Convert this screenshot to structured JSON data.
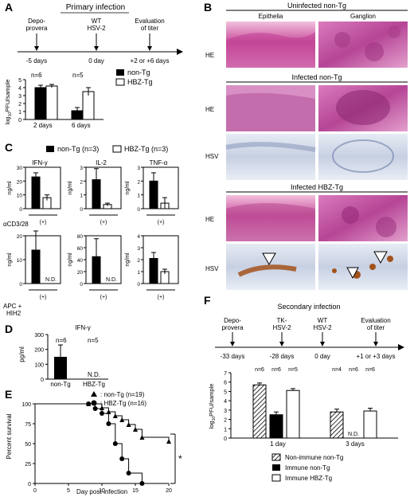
{
  "panel_labels": {
    "A": "A",
    "B": "B",
    "C": "C",
    "D": "D",
    "E": "E",
    "F": "F"
  },
  "A": {
    "title": "Primary infection",
    "timeline": [
      {
        "label1": "Depo-",
        "label2": "provera",
        "day": "-5 days"
      },
      {
        "label1": "WT",
        "label2": "HSV-2",
        "day": "0 day"
      },
      {
        "label1": "Evaluation",
        "label2": "of titer",
        "day": "+2 or +6 days"
      }
    ],
    "ylabel": "log10PFU/sample",
    "ylabel_main": "log",
    "ylabel_sub": "10",
    "ylabel_rest": "PFU/sample",
    "ticks": [
      "0",
      "1",
      "2",
      "3",
      "4",
      "5"
    ],
    "groups": [
      "2 days",
      "6 days"
    ],
    "n_labels": [
      "n=6",
      "n=5"
    ],
    "legend": [
      "non-Tg",
      "HBZ-Tg"
    ]
  },
  "chart_data": [
    {
      "type": "bar",
      "panel": "A",
      "categories": [
        "2 days",
        "6 days"
      ],
      "series": [
        {
          "name": "non-Tg",
          "values": [
            4.0,
            1.1
          ],
          "err": [
            0.3,
            0.4
          ]
        },
        {
          "name": "HBZ-Tg",
          "values": [
            4.2,
            3.5
          ],
          "err": [
            0.2,
            0.5
          ]
        }
      ],
      "ylim": [
        0,
        5
      ],
      "ylabel": "log10PFU/sample"
    },
    {
      "type": "bar",
      "panel": "C-IFN-γ",
      "series": [
        {
          "name": "non-Tg",
          "values": [
            23
          ]
        },
        {
          "name": "HBZ-Tg",
          "values": [
            8
          ]
        }
      ],
      "ylim": [
        0,
        30
      ]
    },
    {
      "type": "bar",
      "panel": "C-IL-2",
      "series": [
        {
          "name": "non-Tg",
          "values": [
            2.1
          ]
        },
        {
          "name": "HBZ-Tg",
          "values": [
            0.3
          ]
        }
      ],
      "ylim": [
        0,
        3
      ]
    },
    {
      "type": "bar",
      "panel": "C-TNF-α",
      "series": [
        {
          "name": "non-Tg",
          "values": [
            2.0
          ]
        },
        {
          "name": "HBZ-Tg",
          "values": [
            0.4
          ]
        }
      ],
      "ylim": [
        0,
        3
      ]
    },
    {
      "type": "bar",
      "panel": "C-APC-IFN",
      "series": [
        {
          "name": "non-Tg",
          "values": [
            14
          ]
        },
        {
          "name": "HBZ-Tg",
          "values": [
            0
          ]
        }
      ],
      "ylim": [
        0,
        20
      ]
    },
    {
      "type": "bar",
      "panel": "C-APC-IL2",
      "series": [
        {
          "name": "non-Tg",
          "values": [
            45
          ]
        },
        {
          "name": "HBZ-Tg",
          "values": [
            0
          ]
        }
      ],
      "ylim": [
        0,
        80
      ]
    },
    {
      "type": "bar",
      "panel": "C-APC-TNF",
      "series": [
        {
          "name": "non-Tg",
          "values": [
            2.1
          ]
        },
        {
          "name": "HBZ-Tg",
          "values": [
            1.0
          ]
        }
      ],
      "ylim": [
        0,
        4
      ]
    },
    {
      "type": "bar",
      "panel": "D",
      "categories": [
        "non-Tg",
        "HBZ-Tg"
      ],
      "values": [
        150,
        0
      ],
      "ylim": [
        0,
        300
      ],
      "ylabel": "pg/ml"
    },
    {
      "type": "line",
      "panel": "E",
      "series": [
        {
          "name": "non-Tg",
          "x": [
            0,
            8,
            10,
            11,
            12,
            13,
            14,
            15,
            16,
            20
          ],
          "y": [
            100,
            100,
            95,
            90,
            85,
            80,
            74,
            68,
            58,
            53
          ]
        },
        {
          "name": "HBZ-Tg",
          "x": [
            0,
            8,
            9,
            10,
            11,
            12,
            13,
            14,
            16
          ],
          "y": [
            100,
            100,
            94,
            88,
            75,
            50,
            31,
            13,
            0
          ]
        }
      ],
      "xlim": [
        0,
        20
      ],
      "ylim": [
        0,
        100
      ],
      "xlabel": "Day post-infection",
      "ylabel": "Percent survival"
    },
    {
      "type": "bar",
      "panel": "F",
      "categories": [
        "1 day",
        "3 days"
      ],
      "series": [
        {
          "name": "Non-immune non-Tg",
          "values": [
            5.7,
            2.8
          ]
        },
        {
          "name": "Immune non-Tg",
          "values": [
            2.5,
            0
          ]
        },
        {
          "name": "Immune HBZ-Tg",
          "values": [
            5.1,
            2.9
          ]
        }
      ],
      "ylim": [
        0,
        7
      ],
      "ylabel": "log10PFU/sample"
    }
  ],
  "B": {
    "uninfected": "Uninfected non-Tg",
    "infected_nontg": "Infected non-Tg",
    "infected_hbz": "Infected HBZ-Tg",
    "epithelia": "Epithelia",
    "ganglion": "Ganglion",
    "he": "HE",
    "hsv": "HSV"
  },
  "C": {
    "legend": [
      "non-Tg (n=3)",
      "HBZ-Tg (n=3)"
    ],
    "titles": [
      "IFN-γ",
      "IL-2",
      "TNF-α"
    ],
    "ylabel": "ng/ml",
    "row1_ticks": [
      [
        "0",
        "10",
        "20",
        "30"
      ],
      [
        "0",
        "1",
        "2",
        "3"
      ],
      [
        "0",
        "1",
        "2",
        "3"
      ]
    ],
    "row2_ticks": [
      [
        "0",
        "10",
        "20"
      ],
      [
        "0",
        "20",
        "40",
        "60",
        "80"
      ],
      [
        "0",
        "1",
        "2",
        "3",
        "4"
      ]
    ],
    "acd": "αCD3/28",
    "apc1": "APC +",
    "apc2": "HIH2",
    "plus": "(+)",
    "nd": "N.D."
  },
  "D": {
    "title": "IFN-γ",
    "ylabel": "pg/ml",
    "ticks": [
      "0",
      "100",
      "200",
      "300"
    ],
    "n": [
      "n=6",
      "n=5"
    ],
    "cats": [
      "non-Tg",
      "HBZ-Tg"
    ],
    "nd": "N.D."
  },
  "E": {
    "legend": [
      ": non-Tg  (n=19)",
      ": HBZ-Tg (n=16)"
    ],
    "ylabel": "Percent survival",
    "xlabel": "Day post-infection",
    "yticks": [
      "0",
      "25",
      "50",
      "75",
      "100"
    ],
    "xticks": [
      "0",
      "5",
      "10",
      "15",
      "20"
    ],
    "star": "*"
  },
  "F": {
    "title": "Secondary infection",
    "timeline": [
      {
        "l1": "Depo-",
        "l2": "provera",
        "day": "-33 days"
      },
      {
        "l1": "TK-",
        "l2": "HSV-2",
        "day": "-28 days"
      },
      {
        "l1": "WT",
        "l2": "HSV-2",
        "day": "0 day"
      },
      {
        "l1": "Evaluation",
        "l2": "of titer",
        "day": "+1 or +3 days"
      }
    ],
    "ylabel_main": "log",
    "ylabel_sub": "10",
    "ylabel_rest": "PFU/sample",
    "ticks": [
      "0",
      "1",
      "2",
      "3",
      "4",
      "5",
      "6",
      "7"
    ],
    "n1": [
      "n=6",
      "n=6",
      "n=5"
    ],
    "n2": [
      "n=4",
      "n=6",
      "n=6"
    ],
    "groups": [
      "1 day",
      "3 days"
    ],
    "nd": "N.D.",
    "legend": [
      "Non-immune non-Tg",
      "Immune non-Tg",
      "Immune HBZ-Tg"
    ]
  }
}
